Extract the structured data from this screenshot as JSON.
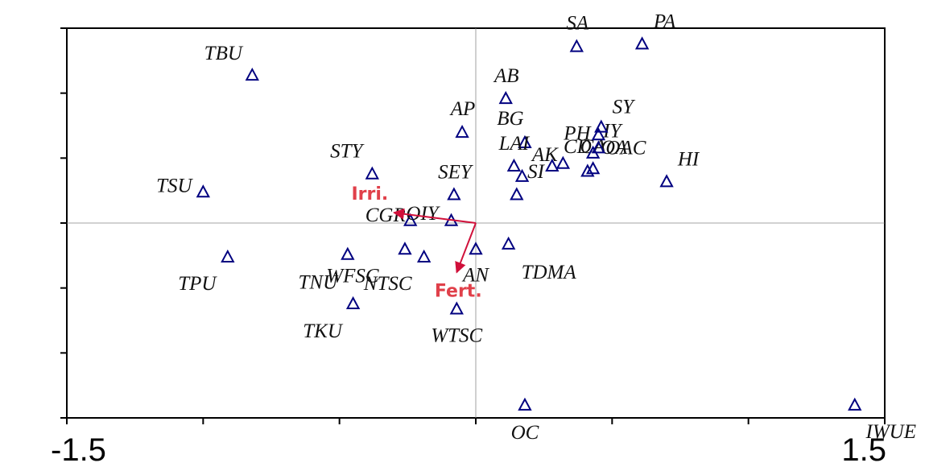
{
  "chart_data": {
    "type": "scatter",
    "labels": [
      "TBU",
      "TSU",
      "TPU",
      "STY",
      "SEY",
      "AP",
      "AB",
      "SA",
      "PA",
      "BG",
      "LAI",
      "SI",
      null,
      "AK",
      "CD",
      "PH",
      "CA",
      "OA",
      "OAC",
      "IY",
      "SY",
      "HI",
      "CGR",
      "OIY",
      "WFSC",
      "TNU",
      "NTSC",
      "AN",
      "TDMA",
      "TKU",
      "WTSC",
      "OC",
      "IWUE"
    ],
    "x": [
      -0.82,
      -1.0,
      -0.91,
      -0.38,
      -0.08,
      -0.05,
      0.11,
      0.37,
      0.61,
      0.18,
      0.14,
      0.17,
      0.15,
      0.28,
      0.32,
      0.41,
      0.43,
      0.43,
      0.45,
      0.45,
      0.46,
      0.7,
      -0.24,
      -0.09,
      -0.26,
      -0.47,
      -0.19,
      0.0,
      0.12,
      -0.45,
      -0.07,
      0.18,
      1.39
    ],
    "values": [
      0.57,
      0.12,
      -0.13,
      0.19,
      0.11,
      0.35,
      0.48,
      0.68,
      0.69,
      0.31,
      0.22,
      0.18,
      0.11,
      0.22,
      0.23,
      0.2,
      0.21,
      0.27,
      0.29,
      0.34,
      0.37,
      0.16,
      0.01,
      0.01,
      -0.1,
      -0.12,
      -0.13,
      -0.1,
      -0.08,
      -0.31,
      -0.33,
      -0.7,
      -0.7
    ],
    "color": "#000080",
    "arrows": [
      {
        "name": "Irri.",
        "x": -0.3,
        "y": 0.04
      },
      {
        "name": "Fert.",
        "x": -0.07,
        "y": -0.19
      }
    ],
    "arrow_color": "#d0103a",
    "xlim": [
      -1.5,
      1.5
    ],
    "xticks": [
      -1.5,
      -1,
      -0.5,
      0,
      0.5,
      1,
      1.5
    ],
    "ylim": [
      -0.75,
      0.75
    ],
    "yticks": [
      -0.75,
      -0.5,
      -0.25,
      0,
      0.25,
      0.5,
      0.75
    ]
  }
}
